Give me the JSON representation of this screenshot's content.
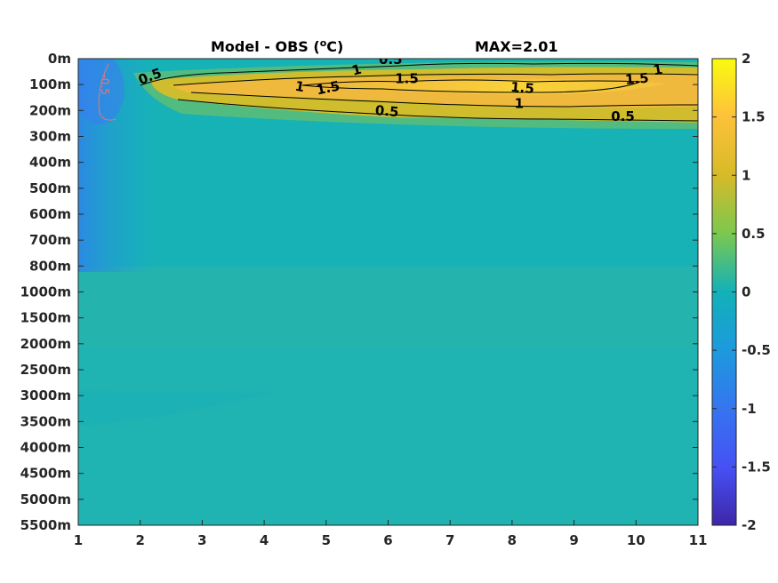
{
  "chart_data": {
    "type": "heatmap",
    "title": "Model - OBS (",
    "title_unit_sup": "o",
    "title_unit_tail": "C)",
    "max_text": "MAX=2.01",
    "x_ticks": [
      "1",
      "2",
      "3",
      "4",
      "5",
      "6",
      "7",
      "8",
      "9",
      "10",
      "11"
    ],
    "xlim": [
      1,
      11
    ],
    "y_ticks": [
      "0m",
      "100m",
      "200m",
      "300m",
      "400m",
      "500m",
      "600m",
      "700m",
      "800m",
      "1000m",
      "1500m",
      "2000m",
      "2500m",
      "3000m",
      "3500m",
      "4000m",
      "4500m",
      "5000m",
      "5500m"
    ],
    "colorbar": {
      "ticks": [
        "2",
        "1.5",
        "1",
        "0.5",
        "0",
        "-0.5",
        "-1",
        "-1.5",
        "-2"
      ],
      "range": [
        -2,
        2
      ],
      "colormap": "parula"
    },
    "contour_levels": [
      -0.5,
      0.5,
      1,
      1.5
    ],
    "contour_labels": [
      {
        "text": "0.5",
        "x": 2.27,
        "depth_index": 0.85,
        "rot": -20
      },
      {
        "text": "0.5",
        "x": 6.42,
        "depth_index": 0.2,
        "rot": 0
      },
      {
        "text": "1",
        "x": 5.85,
        "depth_index": 0.6,
        "rot": -15
      },
      {
        "text": "1",
        "x": 4.83,
        "depth_index": 1.25,
        "rot": 10
      },
      {
        "text": "1.5",
        "x": 5.35,
        "depth_index": 1.3,
        "rot": -12
      },
      {
        "text": "1.5",
        "x": 6.7,
        "depth_index": 0.95,
        "rot": 0
      },
      {
        "text": "1.5",
        "x": 8.7,
        "depth_index": 1.3,
        "rot": 5
      },
      {
        "text": "1",
        "x": 8.65,
        "depth_index": 1.9,
        "rot": 0
      },
      {
        "text": "0.5",
        "x": 6.35,
        "depth_index": 2.2,
        "rot": 5
      },
      {
        "text": "1.5",
        "x": 10.7,
        "depth_index": 0.95,
        "rot": -5
      },
      {
        "text": "1",
        "x": 11.07,
        "depth_index": 0.6,
        "rot": -10
      },
      {
        "text": "0.5",
        "x": 10.45,
        "depth_index": 2.4,
        "rot": 0
      },
      {
        "text": "-0.5",
        "x": 1.4,
        "depth_index": 1.0,
        "rot": 90
      }
    ]
  }
}
